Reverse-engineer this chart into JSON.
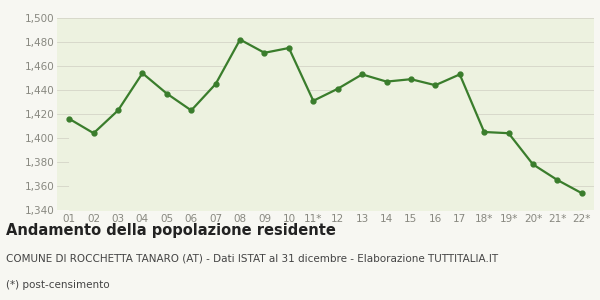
{
  "x_labels": [
    "01",
    "02",
    "03",
    "04",
    "05",
    "06",
    "07",
    "08",
    "09",
    "10",
    "11*",
    "12",
    "13",
    "14",
    "15",
    "16",
    "17",
    "18*",
    "19*",
    "20*",
    "21*",
    "22*"
  ],
  "y_values": [
    1416,
    1404,
    1423,
    1454,
    1437,
    1423,
    1445,
    1482,
    1471,
    1475,
    1431,
    1441,
    1453,
    1447,
    1449,
    1444,
    1453,
    1405,
    1404,
    1378,
    1365,
    1354
  ],
  "line_color": "#3a7d2c",
  "fill_color": "#edf2e0",
  "marker": "o",
  "marker_size": 3.5,
  "line_width": 1.6,
  "ylim": [
    1340,
    1500
  ],
  "yticks": [
    1340,
    1360,
    1380,
    1400,
    1420,
    1440,
    1460,
    1480,
    1500
  ],
  "background_color": "#f7f7f2",
  "plot_bg_color": "#edf2e0",
  "grid_color": "#d5d5c8",
  "title": "Andamento della popolazione residente",
  "subtitle": "COMUNE DI ROCCHETTA TANARO (AT) - Dati ISTAT al 31 dicembre - Elaborazione TUTTITALIA.IT",
  "footnote": "(*) post-censimento",
  "title_fontsize": 10.5,
  "subtitle_fontsize": 7.5,
  "footnote_fontsize": 7.5,
  "tick_fontsize": 7.5,
  "tick_color": "#888880"
}
